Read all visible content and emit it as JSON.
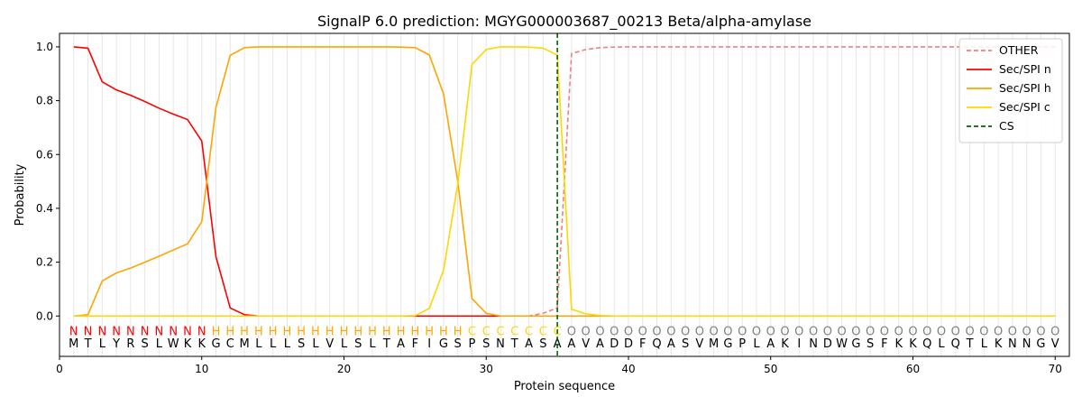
{
  "chart_data": {
    "type": "line",
    "title": "SignalP 6.0 prediction: MGYG000003687_00213 Beta/alpha-amylase",
    "xlabel": "Protein sequence",
    "ylabel": "Probability",
    "xlim": [
      0,
      71
    ],
    "ylim": [
      -0.15,
      1.05
    ],
    "x_ticks": [
      0,
      10,
      20,
      30,
      40,
      50,
      60,
      70
    ],
    "y_ticks": [
      0.0,
      0.2,
      0.4,
      0.6,
      0.8,
      1.0
    ],
    "x_tick_labels": [
      "0",
      "10",
      "20",
      "30",
      "40",
      "50",
      "60",
      "70"
    ],
    "y_tick_labels": [
      "0.0",
      "0.2",
      "0.4",
      "0.6",
      "0.8",
      "1.0"
    ],
    "grid": "vertical lines at each residue",
    "legend_position": "top-right",
    "sequence": "MTLYRSLWKKGCMLLLSLVLSLTAFIGSPSNTASAAVADDFQASVMGPLAKINDWGSFKKQLQTLKNNGV",
    "labels": "NNNNNNNNNNHHHHHHHHHHHHHHHHHHCCCCCCCOOOOOOOOOOOOOOOOOOOOOOOOOOOOOOOOOOO",
    "label_colors": {
      "N": "#ff0000",
      "H": "#ffa500",
      "C": "#ffd700",
      "O": "#808080"
    },
    "x": [
      1,
      2,
      3,
      4,
      5,
      6,
      7,
      8,
      9,
      10,
      11,
      12,
      13,
      14,
      15,
      16,
      17,
      18,
      19,
      20,
      21,
      22,
      23,
      24,
      25,
      26,
      27,
      28,
      29,
      30,
      31,
      32,
      33,
      34,
      35,
      36,
      37,
      38,
      39,
      40,
      41,
      42,
      43,
      44,
      45,
      46,
      47,
      48,
      49,
      50,
      51,
      52,
      53,
      54,
      55,
      56,
      57,
      58,
      59,
      60,
      61,
      62,
      63,
      64,
      65,
      66,
      67,
      68,
      69,
      70
    ],
    "series": [
      {
        "name": "OTHER",
        "color": "#f08080",
        "dash": "dashed",
        "values": [
          0,
          0,
          0,
          0,
          0,
          0,
          0,
          0,
          0,
          0,
          0,
          0,
          0,
          0,
          0,
          0,
          0,
          0,
          0,
          0,
          0,
          0,
          0,
          0,
          0,
          0,
          0,
          0,
          0,
          0,
          0,
          0,
          0,
          0.01,
          0.03,
          0.975,
          0.99,
          0.997,
          0.999,
          1,
          1,
          1,
          1,
          1,
          1,
          1,
          1,
          1,
          1,
          1,
          1,
          1,
          1,
          1,
          1,
          1,
          1,
          1,
          1,
          1,
          1,
          1,
          1,
          1,
          1,
          1,
          1,
          1,
          1,
          1
        ]
      },
      {
        "name": "Sec/SPI n",
        "color": "#ff0000",
        "dash": "solid",
        "values": [
          1.0,
          0.995,
          0.87,
          0.84,
          0.82,
          0.797,
          0.772,
          0.75,
          0.73,
          0.65,
          0.22,
          0.03,
          0.005,
          0,
          0,
          0,
          0,
          0,
          0,
          0,
          0,
          0,
          0,
          0,
          0,
          0,
          0,
          0,
          0,
          0,
          0,
          0,
          0,
          0,
          0,
          0,
          0,
          0,
          0,
          0,
          0,
          0,
          0,
          0,
          0,
          0,
          0,
          0,
          0,
          0,
          0,
          0,
          0,
          0,
          0,
          0,
          0,
          0,
          0,
          0,
          0,
          0,
          0,
          0,
          0,
          0,
          0,
          0,
          0,
          0
        ]
      },
      {
        "name": "Sec/SPI h",
        "color": "#ffa500",
        "dash": "solid",
        "values": [
          0,
          0.005,
          0.13,
          0.16,
          0.178,
          0.2,
          0.222,
          0.245,
          0.268,
          0.35,
          0.775,
          0.968,
          0.997,
          1.0,
          1.0,
          1.0,
          1.0,
          1.0,
          1.0,
          1.0,
          1.0,
          1.0,
          1.0,
          0.999,
          0.997,
          0.97,
          0.825,
          0.5,
          0.065,
          0.01,
          0,
          0,
          0,
          0,
          0,
          0,
          0,
          0,
          0,
          0,
          0,
          0,
          0,
          0,
          0,
          0,
          0,
          0,
          0,
          0,
          0,
          0,
          0,
          0,
          0,
          0,
          0,
          0,
          0,
          0,
          0,
          0,
          0,
          0,
          0,
          0,
          0,
          0,
          0,
          0
        ]
      },
      {
        "name": "Sec/SPI c",
        "color": "#ffd700",
        "dash": "solid",
        "values": [
          0,
          0,
          0,
          0,
          0,
          0,
          0,
          0,
          0,
          0,
          0,
          0,
          0,
          0,
          0,
          0,
          0,
          0,
          0,
          0,
          0,
          0,
          0,
          0,
          0.001,
          0.028,
          0.17,
          0.49,
          0.935,
          0.99,
          1.0,
          1.0,
          0.999,
          0.995,
          0.97,
          0.025,
          0.008,
          0.002,
          0,
          0,
          0,
          0,
          0,
          0,
          0,
          0,
          0,
          0,
          0,
          0,
          0,
          0,
          0,
          0,
          0,
          0,
          0,
          0,
          0,
          0,
          0,
          0,
          0,
          0,
          0,
          0,
          0,
          0,
          0,
          0
        ]
      }
    ],
    "cs_marker": {
      "name": "CS",
      "x": 35,
      "color": "#006400",
      "dash": "dashed"
    }
  }
}
